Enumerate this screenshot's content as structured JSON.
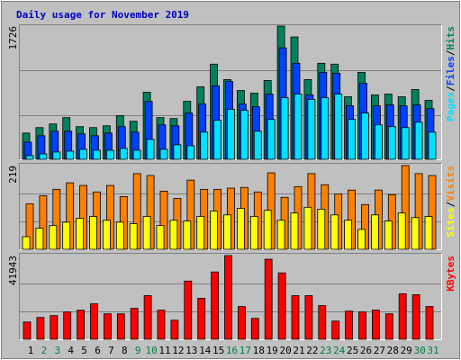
{
  "title": "Daily usage for November 2019",
  "legend_separator": "/",
  "chart_data": [
    {
      "type": "bar",
      "ylim": [
        0,
        1726
      ],
      "yticks": [
        1726
      ],
      "series": [
        {
          "name": "Pages",
          "color": "#00e0ff",
          "values": [
            47,
            70,
            94,
            106,
            129,
            117,
            117,
            141,
            117,
            258,
            129,
            188,
            176,
            352,
            505,
            646,
            634,
            364,
            517,
            798,
            845,
            775,
            798,
            845,
            517,
            599,
            446,
            423,
            411,
            481,
            352
          ]
        },
        {
          "name": "Files",
          "color": "#0040ff",
          "values": [
            223,
            305,
            364,
            364,
            329,
            305,
            340,
            423,
            352,
            751,
            446,
            434,
            599,
            716,
            951,
            1010,
            716,
            681,
            845,
            1444,
            1244,
            834,
            1127,
            1115,
            693,
            986,
            693,
            704,
            693,
            704,
            657
          ]
        },
        {
          "name": "Hits",
          "color": "#00805c",
          "values": [
            340,
            411,
            458,
            540,
            423,
            411,
            434,
            564,
            493,
            869,
            540,
            528,
            751,
            939,
            1233,
            1033,
            892,
            857,
            1021,
            1726,
            1585,
            1033,
            1244,
            1233,
            810,
            1127,
            834,
            845,
            810,
            904,
            763
          ]
        }
      ]
    },
    {
      "type": "bar",
      "ylim": [
        0,
        219
      ],
      "yticks": [
        219
      ],
      "series": [
        {
          "name": "Sites",
          "color": "#ffff00",
          "values": [
            33,
            55,
            62,
            71,
            81,
            86,
            76,
            71,
            67,
            86,
            62,
            76,
            74,
            86,
            100,
            90,
            107,
            86,
            102,
            76,
            95,
            110,
            105,
            90,
            76,
            52,
            90,
            74,
            95,
            83,
            86
          ]
        },
        {
          "name": "Visits",
          "color": "#ff8000",
          "values": [
            119,
            140,
            157,
            174,
            167,
            150,
            167,
            138,
            198,
            193,
            152,
            133,
            181,
            157,
            157,
            160,
            162,
            150,
            200,
            136,
            164,
            198,
            169,
            145,
            155,
            117,
            155,
            143,
            219,
            198,
            193
          ]
        }
      ]
    },
    {
      "type": "bar",
      "ylim": [
        0,
        41943
      ],
      "yticks": [
        41943
      ],
      "categories": [
        "1",
        "2",
        "3",
        "4",
        "5",
        "6",
        "7",
        "8",
        "9",
        "10",
        "11",
        "12",
        "13",
        "14",
        "15",
        "16",
        "17",
        "18",
        "19",
        "20",
        "21",
        "22",
        "23",
        "24",
        "25",
        "26",
        "27",
        "28",
        "29",
        "30",
        "31"
      ],
      "category_colors": [
        "#000000",
        "#008040",
        "#008040",
        "#000000",
        "#000000",
        "#000000",
        "#000000",
        "#000000",
        "#008040",
        "#008040",
        "#000000",
        "#000000",
        "#000000",
        "#000000",
        "#000000",
        "#008040",
        "#008040",
        "#000000",
        "#000000",
        "#000000",
        "#000000",
        "#000000",
        "#008040",
        "#008040",
        "#000000",
        "#000000",
        "#000000",
        "#000000",
        "#000000",
        "#008040",
        "#008040"
      ],
      "series": [
        {
          "name": "KBytes",
          "color": "#ff0000",
          "values": [
            8664,
            10944,
            11856,
            13680,
            14592,
            17784,
            12768,
            12768,
            15504,
            21888,
            14592,
            9576,
            29184,
            20520,
            33744,
            41943,
            16416,
            10488,
            40128,
            33288,
            21888,
            21888,
            16872,
            9120,
            14136,
            13680,
            14592,
            12768,
            22800,
            22344,
            16416
          ]
        }
      ]
    }
  ]
}
